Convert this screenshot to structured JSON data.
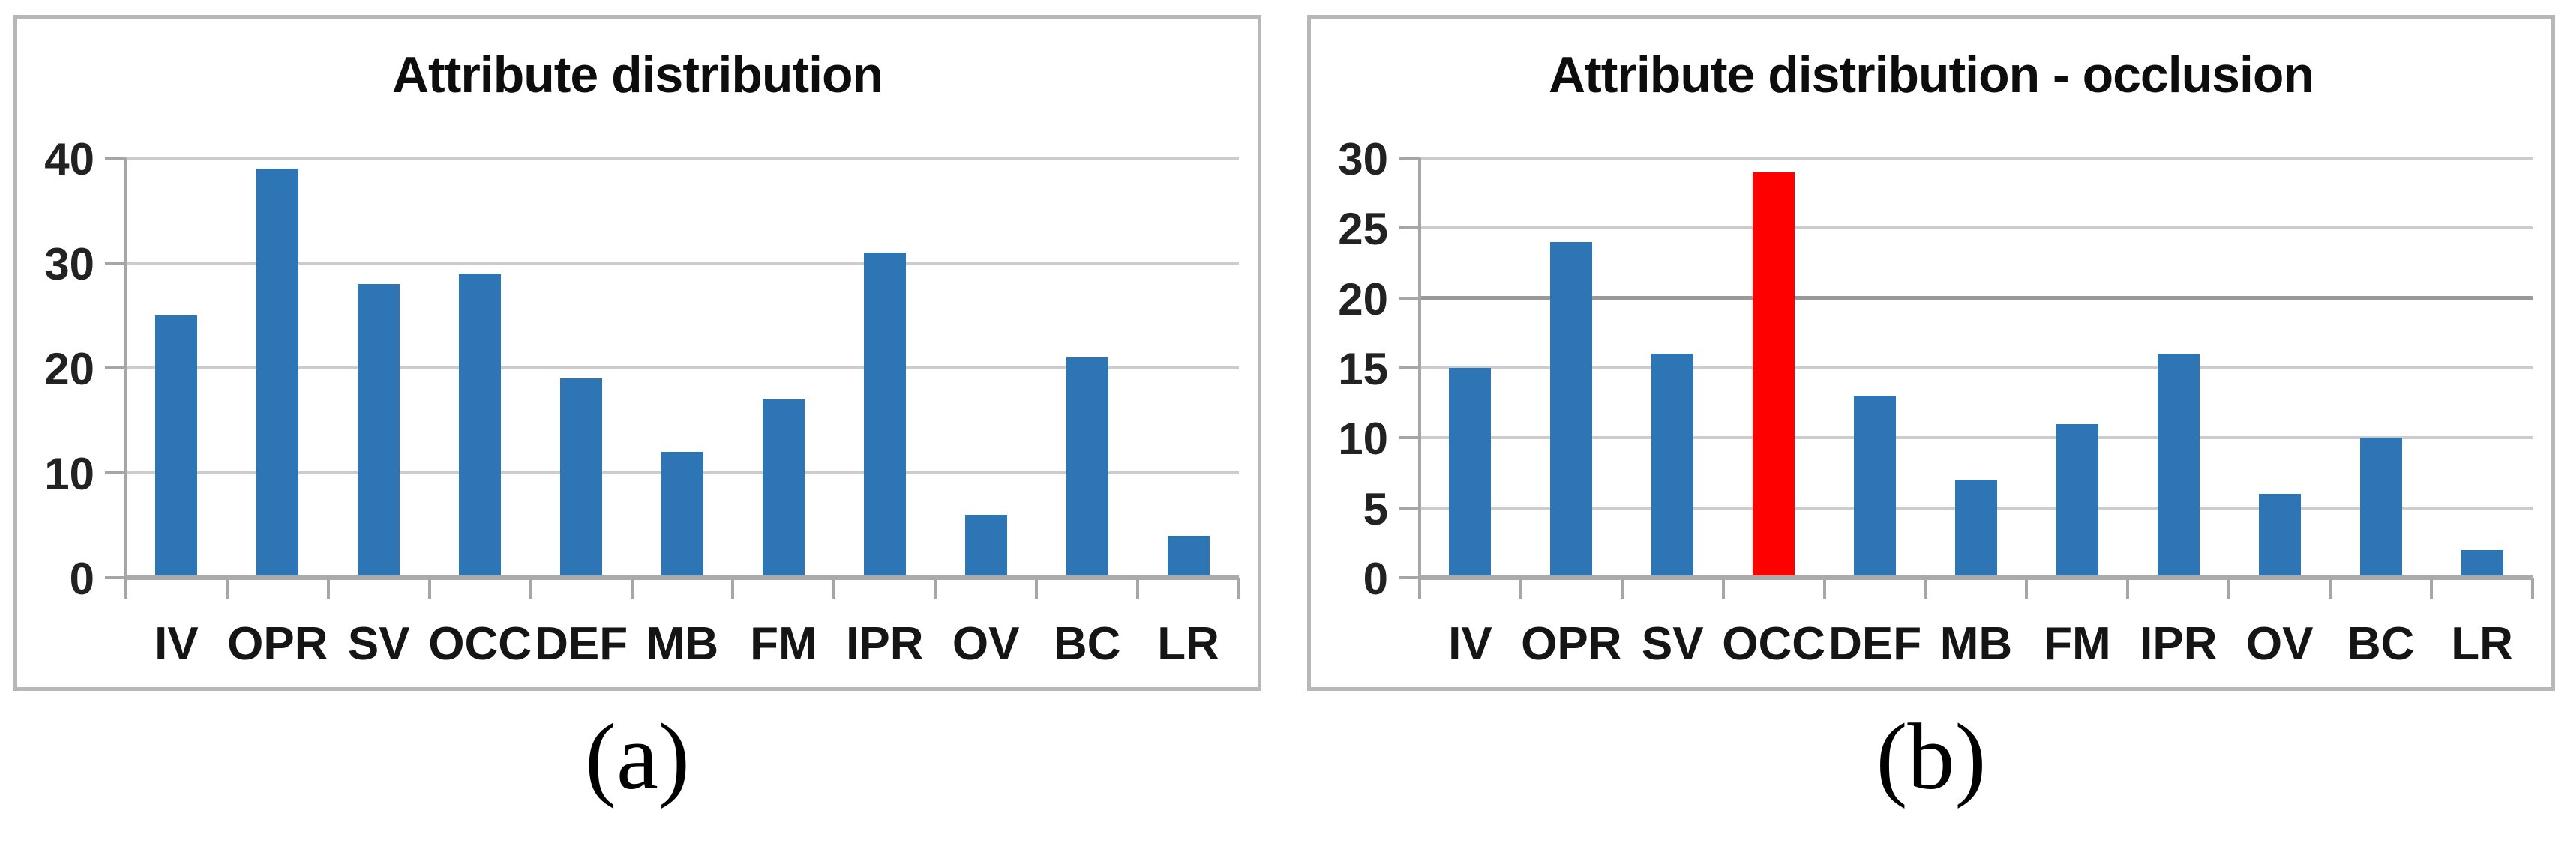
{
  "figure": {
    "background": "#ffffff",
    "panel_border_color": "#b7b7b7"
  },
  "captions": {
    "a": "(a)",
    "b": "(b)"
  },
  "chart_data": [
    {
      "type": "bar",
      "title": "Attribute distribution",
      "categories": [
        "IV",
        "OPR",
        "SV",
        "OCC",
        "DEF",
        "MB",
        "FM",
        "IPR",
        "OV",
        "BC",
        "LR"
      ],
      "values": [
        25,
        39,
        28,
        29,
        19,
        12,
        17,
        31,
        6,
        21,
        4
      ],
      "xlabel": "",
      "ylabel": "",
      "ylim": [
        0,
        40
      ],
      "yticks": [
        0,
        10,
        20,
        30,
        40
      ],
      "strong_gridlines": [],
      "grid": true,
      "legend": "none",
      "bar_color": "#2E75B6",
      "gridline_color": "#cccccc",
      "axis_color": "#a6a6a6"
    },
    {
      "type": "bar",
      "title": "Attribute distribution - occlusion",
      "categories": [
        "IV",
        "OPR",
        "SV",
        "OCC",
        "DEF",
        "MB",
        "FM",
        "IPR",
        "OV",
        "BC",
        "LR"
      ],
      "values": [
        15,
        24,
        16,
        29,
        13,
        7,
        11,
        16,
        6,
        10,
        2
      ],
      "xlabel": "",
      "ylabel": "",
      "ylim": [
        0,
        30
      ],
      "yticks": [
        0,
        5,
        10,
        15,
        20,
        25,
        30
      ],
      "strong_gridlines": [
        20
      ],
      "grid": true,
      "legend": "none",
      "bar_color": "#2E75B6",
      "highlight": {
        "index": 3,
        "color": "#FF0000",
        "category": "OCC"
      },
      "gridline_color": "#bfbfbf",
      "axis_color": "#a6a6a6"
    }
  ]
}
